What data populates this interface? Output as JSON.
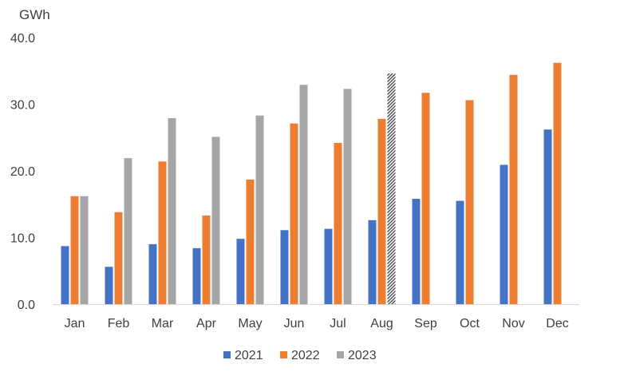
{
  "chart_data": {
    "type": "bar",
    "ylabel": "GWh",
    "ylim": [
      0,
      40
    ],
    "yticks": [
      "0.0",
      "10.0",
      "20.0",
      "30.0",
      "40.0"
    ],
    "grid": false,
    "legend_position": "bottom",
    "categories": [
      "Jan",
      "Feb",
      "Mar",
      "Apr",
      "May",
      "Jun",
      "Jul",
      "Aug",
      "Sep",
      "Oct",
      "Nov",
      "Dec"
    ],
    "series": [
      {
        "name": "2021",
        "color": "#4472C4",
        "values": [
          8.7,
          5.6,
          9.0,
          8.4,
          9.8,
          11.1,
          11.3,
          12.6,
          15.8,
          15.5,
          20.9,
          26.2
        ]
      },
      {
        "name": "2022",
        "color": "#ED7D31",
        "values": [
          16.2,
          13.8,
          21.4,
          13.3,
          18.7,
          27.1,
          24.2,
          27.8,
          31.7,
          30.6,
          34.4,
          36.2
        ]
      },
      {
        "name": "2023",
        "color": "#A5A5A5",
        "values": [
          16.2,
          21.9,
          27.9,
          25.1,
          28.3,
          32.9,
          32.3,
          34.6,
          null,
          null,
          null,
          null
        ]
      }
    ],
    "hatched_points": [
      {
        "series": "2023",
        "category": "Aug"
      }
    ]
  }
}
